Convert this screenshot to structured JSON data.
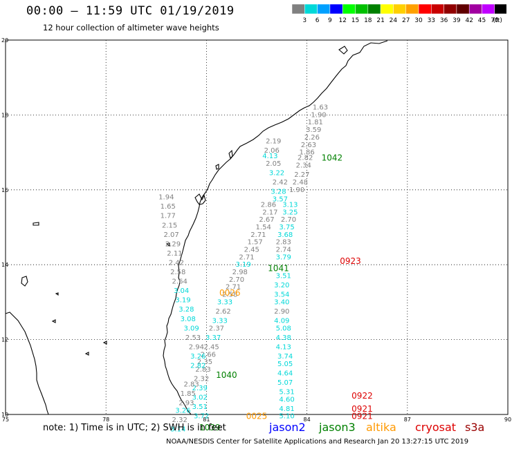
{
  "header": {
    "title": "00:00 – 11:59 UTC 01/19/2019",
    "subtitle": "12 hour collection of altimeter wave heights"
  },
  "scale": {
    "colors": [
      "#808080",
      "#00d8d8",
      "#00a0ff",
      "#0000ff",
      "#00ff00",
      "#00c000",
      "#008000",
      "#ffff00",
      "#ffd000",
      "#ffa000",
      "#ff0000",
      "#c80000",
      "#900000",
      "#600000",
      "#a000a0",
      "#c000ff",
      "#000000"
    ],
    "labels": [
      "3",
      "6",
      "9",
      "12",
      "15",
      "18",
      "21",
      "24",
      "27",
      "30",
      "33",
      "36",
      "39",
      "42",
      "45",
      "70",
      "(ft)"
    ]
  },
  "axes": {
    "lon_labels": [
      "75",
      "78",
      "81",
      "84",
      "87",
      "90"
    ],
    "lat_labels": [
      "20",
      "18",
      "16",
      "14",
      "12",
      "10"
    ]
  },
  "satellites": [
    {
      "name": "jason2",
      "color": "#0000ff"
    },
    {
      "name": "jason3",
      "color": "#008000"
    },
    {
      "name": "altika",
      "color": "#ff9900"
    },
    {
      "name": "cryosat",
      "color": "#dd0000"
    },
    {
      "name": "s3a",
      "color": "#990000"
    }
  ],
  "note": "note: 1) Time is in UTC; 2) SWH is in feet",
  "footer": "NOAA/NESDIS Center for Satellite Applications and Research   Jan 20 13:27:15 UTC 2019",
  "observations": [
    {
      "lon": 84.4,
      "lat": 18.2,
      "v": "1.63",
      "c": "#808080"
    },
    {
      "lon": 84.35,
      "lat": 18.0,
      "v": "1.90",
      "c": "#808080"
    },
    {
      "lon": 84.25,
      "lat": 17.8,
      "v": "1.81",
      "c": "#808080"
    },
    {
      "lon": 84.2,
      "lat": 17.6,
      "v": "3.59",
      "c": "#808080"
    },
    {
      "lon": 84.15,
      "lat": 17.4,
      "v": "2.26",
      "c": "#808080"
    },
    {
      "lon": 84.05,
      "lat": 17.2,
      "v": "2.63",
      "c": "#808080"
    },
    {
      "lon": 84.0,
      "lat": 17.0,
      "v": "1.86",
      "c": "#808080"
    },
    {
      "lon": 83.95,
      "lat": 16.85,
      "v": "2.82",
      "c": "#808080"
    },
    {
      "lon": 83.9,
      "lat": 16.65,
      "v": "2.34",
      "c": "#808080"
    },
    {
      "lon": 83.85,
      "lat": 16.4,
      "v": "2.27",
      "c": "#808080"
    },
    {
      "lon": 83.8,
      "lat": 16.2,
      "v": "2.48",
      "c": "#808080"
    },
    {
      "lon": 83.7,
      "lat": 16.0,
      "v": "1.90",
      "c": "#808080"
    },
    {
      "lon": 83.5,
      "lat": 15.6,
      "v": "3.13",
      "c": "#00d8d8"
    },
    {
      "lon": 83.5,
      "lat": 15.4,
      "v": "3.25",
      "c": "#00d8d8"
    },
    {
      "lon": 83.45,
      "lat": 15.2,
      "v": "2.70",
      "c": "#808080"
    },
    {
      "lon": 83.4,
      "lat": 15.0,
      "v": "3.75",
      "c": "#00d8d8"
    },
    {
      "lon": 83.35,
      "lat": 14.8,
      "v": "3.68",
      "c": "#00d8d8"
    },
    {
      "lon": 83.3,
      "lat": 14.6,
      "v": "2.83",
      "c": "#808080"
    },
    {
      "lon": 83.3,
      "lat": 14.4,
      "v": "2.74",
      "c": "#808080"
    },
    {
      "lon": 83.3,
      "lat": 14.2,
      "v": "3.79",
      "c": "#00d8d8"
    },
    {
      "lon": 83.3,
      "lat": 13.7,
      "v": "3.51",
      "c": "#00d8d8"
    },
    {
      "lon": 83.25,
      "lat": 13.45,
      "v": "3.20",
      "c": "#00d8d8"
    },
    {
      "lon": 83.25,
      "lat": 13.2,
      "v": "3.54",
      "c": "#00d8d8"
    },
    {
      "lon": 83.25,
      "lat": 13.0,
      "v": "3.40",
      "c": "#00d8d8"
    },
    {
      "lon": 83.25,
      "lat": 12.75,
      "v": "2.90",
      "c": "#808080"
    },
    {
      "lon": 83.25,
      "lat": 12.5,
      "v": "4.09",
      "c": "#00d8d8"
    },
    {
      "lon": 83.3,
      "lat": 12.3,
      "v": "5.08",
      "c": "#00d8d8"
    },
    {
      "lon": 83.3,
      "lat": 12.05,
      "v": "4.38",
      "c": "#00d8d8"
    },
    {
      "lon": 83.3,
      "lat": 11.8,
      "v": "4.13",
      "c": "#00d8d8"
    },
    {
      "lon": 83.35,
      "lat": 11.55,
      "v": "3.74",
      "c": "#00d8d8"
    },
    {
      "lon": 83.35,
      "lat": 11.35,
      "v": "5.05",
      "c": "#00d8d8"
    },
    {
      "lon": 83.35,
      "lat": 11.1,
      "v": "4.64",
      "c": "#00d8d8"
    },
    {
      "lon": 83.35,
      "lat": 10.85,
      "v": "5.07",
      "c": "#00d8d8"
    },
    {
      "lon": 83.4,
      "lat": 10.6,
      "v": "5.31",
      "c": "#00d8d8"
    },
    {
      "lon": 83.4,
      "lat": 10.4,
      "v": "4.60",
      "c": "#00d8d8"
    },
    {
      "lon": 83.4,
      "lat": 10.15,
      "v": "4.81",
      "c": "#00d8d8"
    },
    {
      "lon": 83.4,
      "lat": 9.95,
      "v": "5.10",
      "c": "#00d8d8"
    },
    {
      "lon": 83.0,
      "lat": 17.3,
      "v": "2.19",
      "c": "#808080"
    },
    {
      "lon": 82.95,
      "lat": 17.05,
      "v": "2.06",
      "c": "#808080"
    },
    {
      "lon": 82.9,
      "lat": 16.9,
      "v": "4.13",
      "c": "#00d8d8"
    },
    {
      "lon": 83.0,
      "lat": 16.7,
      "v": "2.05",
      "c": "#808080"
    },
    {
      "lon": 83.1,
      "lat": 16.45,
      "v": "3.22",
      "c": "#00d8d8"
    },
    {
      "lon": 83.2,
      "lat": 16.2,
      "v": "2.42",
      "c": "#808080"
    },
    {
      "lon": 83.15,
      "lat": 15.95,
      "v": "3.28",
      "c": "#00d8d8"
    },
    {
      "lon": 83.2,
      "lat": 15.75,
      "v": "3.57",
      "c": "#00d8d8"
    },
    {
      "lon": 82.85,
      "lat": 15.6,
      "v": "2.86",
      "c": "#808080"
    },
    {
      "lon": 82.9,
      "lat": 15.4,
      "v": "2.17",
      "c": "#808080"
    },
    {
      "lon": 82.8,
      "lat": 15.2,
      "v": "2.67",
      "c": "#808080"
    },
    {
      "lon": 82.7,
      "lat": 15.0,
      "v": "1.54",
      "c": "#808080"
    },
    {
      "lon": 82.55,
      "lat": 14.8,
      "v": "2.71",
      "c": "#808080"
    },
    {
      "lon": 82.45,
      "lat": 14.6,
      "v": "1.57",
      "c": "#808080"
    },
    {
      "lon": 82.35,
      "lat": 14.4,
      "v": "2.45",
      "c": "#808080"
    },
    {
      "lon": 82.2,
      "lat": 14.2,
      "v": "2.71",
      "c": "#808080"
    },
    {
      "lon": 82.1,
      "lat": 14.0,
      "v": "3.19",
      "c": "#00d8d8"
    },
    {
      "lon": 82.0,
      "lat": 13.8,
      "v": "2.98",
      "c": "#808080"
    },
    {
      "lon": 81.9,
      "lat": 13.6,
      "v": "2.70",
      "c": "#808080"
    },
    {
      "lon": 81.8,
      "lat": 13.4,
      "v": "2.71",
      "c": "#808080"
    },
    {
      "lon": 81.7,
      "lat": 13.2,
      "v": "2.58",
      "c": "#808080"
    },
    {
      "lon": 81.55,
      "lat": 13.0,
      "v": "3.33",
      "c": "#00d8d8"
    },
    {
      "lon": 81.5,
      "lat": 12.75,
      "v": "2.62",
      "c": "#808080"
    },
    {
      "lon": 81.4,
      "lat": 12.5,
      "v": "3.33",
      "c": "#00d8d8"
    },
    {
      "lon": 81.3,
      "lat": 12.3,
      "v": "2.37",
      "c": "#808080"
    },
    {
      "lon": 81.2,
      "lat": 12.05,
      "v": "3.37",
      "c": "#00d8d8"
    },
    {
      "lon": 81.15,
      "lat": 11.8,
      "v": "2.45",
      "c": "#808080"
    },
    {
      "lon": 81.05,
      "lat": 11.6,
      "v": "2.66",
      "c": "#808080"
    },
    {
      "lon": 80.95,
      "lat": 11.4,
      "v": "2.35",
      "c": "#808080"
    },
    {
      "lon": 80.9,
      "lat": 11.2,
      "v": "2.83",
      "c": "#808080"
    },
    {
      "lon": 80.85,
      "lat": 10.95,
      "v": "2.32",
      "c": "#808080"
    },
    {
      "lon": 80.8,
      "lat": 10.7,
      "v": "2.39",
      "c": "#00d8d8"
    },
    {
      "lon": 80.8,
      "lat": 10.45,
      "v": "3.02",
      "c": "#00d8d8"
    },
    {
      "lon": 80.8,
      "lat": 10.2,
      "v": "3.51",
      "c": "#00d8d8"
    },
    {
      "lon": 80.85,
      "lat": 9.95,
      "v": "3.72",
      "c": "#00d8d8"
    },
    {
      "lon": 79.8,
      "lat": 15.8,
      "v": "1.94",
      "c": "#808080"
    },
    {
      "lon": 79.85,
      "lat": 15.55,
      "v": "1.65",
      "c": "#808080"
    },
    {
      "lon": 79.85,
      "lat": 15.3,
      "v": "1.77",
      "c": "#808080"
    },
    {
      "lon": 79.9,
      "lat": 15.05,
      "v": "2.15",
      "c": "#808080"
    },
    {
      "lon": 79.95,
      "lat": 14.8,
      "v": "2.07",
      "c": "#808080"
    },
    {
      "lon": 80.0,
      "lat": 14.55,
      "v": "2.29",
      "c": "#808080"
    },
    {
      "lon": 80.05,
      "lat": 14.3,
      "v": "2.11",
      "c": "#808080"
    },
    {
      "lon": 80.1,
      "lat": 14.05,
      "v": "2.42",
      "c": "#808080"
    },
    {
      "lon": 80.15,
      "lat": 13.8,
      "v": "2.58",
      "c": "#808080"
    },
    {
      "lon": 80.2,
      "lat": 13.55,
      "v": "2.64",
      "c": "#808080"
    },
    {
      "lon": 80.25,
      "lat": 13.3,
      "v": "3.04",
      "c": "#00d8d8"
    },
    {
      "lon": 80.3,
      "lat": 13.05,
      "v": "3.19",
      "c": "#00d8d8"
    },
    {
      "lon": 80.4,
      "lat": 12.8,
      "v": "3.28",
      "c": "#00d8d8"
    },
    {
      "lon": 80.45,
      "lat": 12.55,
      "v": "3.08",
      "c": "#00d8d8"
    },
    {
      "lon": 80.55,
      "lat": 12.3,
      "v": "3.09",
      "c": "#00d8d8"
    },
    {
      "lon": 80.6,
      "lat": 12.05,
      "v": "2.53",
      "c": "#808080"
    },
    {
      "lon": 80.7,
      "lat": 11.8,
      "v": "2.94",
      "c": "#808080"
    },
    {
      "lon": 80.75,
      "lat": 11.55,
      "v": "3.26",
      "c": "#00d8d8"
    },
    {
      "lon": 80.75,
      "lat": 11.3,
      "v": "2.82",
      "c": "#00d8d8"
    },
    {
      "lon": 80.55,
      "lat": 10.8,
      "v": "2.83",
      "c": "#808080"
    },
    {
      "lon": 80.45,
      "lat": 10.55,
      "v": "1.85",
      "c": "#808080"
    },
    {
      "lon": 80.4,
      "lat": 10.3,
      "v": "2.93",
      "c": "#808080"
    },
    {
      "lon": 80.3,
      "lat": 10.1,
      "v": "3.26",
      "c": "#00d8d8"
    },
    {
      "lon": 80.2,
      "lat": 9.85,
      "v": "2.32",
      "c": "#808080"
    },
    {
      "lon": 80.15,
      "lat": 9.6,
      "v": "3.14",
      "c": "#00d8d8"
    }
  ],
  "pass_labels": [
    {
      "lon": 84.75,
      "lat": 16.85,
      "text": "1042",
      "c": "#008000"
    },
    {
      "lon": 83.15,
      "lat": 13.9,
      "text": "1041",
      "c": "#008000"
    },
    {
      "lon": 81.6,
      "lat": 11.05,
      "text": "1040",
      "c": "#008000"
    },
    {
      "lon": 81.1,
      "lat": 9.65,
      "text": "1039",
      "c": "#008000"
    },
    {
      "lon": 85.3,
      "lat": 14.1,
      "text": "0923",
      "c": "#dd0000"
    },
    {
      "lon": 85.65,
      "lat": 10.5,
      "text": "0922",
      "c": "#dd0000"
    },
    {
      "lon": 85.65,
      "lat": 10.15,
      "text": "0921",
      "c": "#dd0000"
    },
    {
      "lon": 85.65,
      "lat": 9.95,
      "text": "0921",
      "c": "#dd0000"
    },
    {
      "lon": 81.7,
      "lat": 13.25,
      "text": "0026",
      "c": "#ff9900"
    },
    {
      "lon": 82.5,
      "lat": 9.95,
      "text": "0025",
      "c": "#ff9900"
    }
  ]
}
